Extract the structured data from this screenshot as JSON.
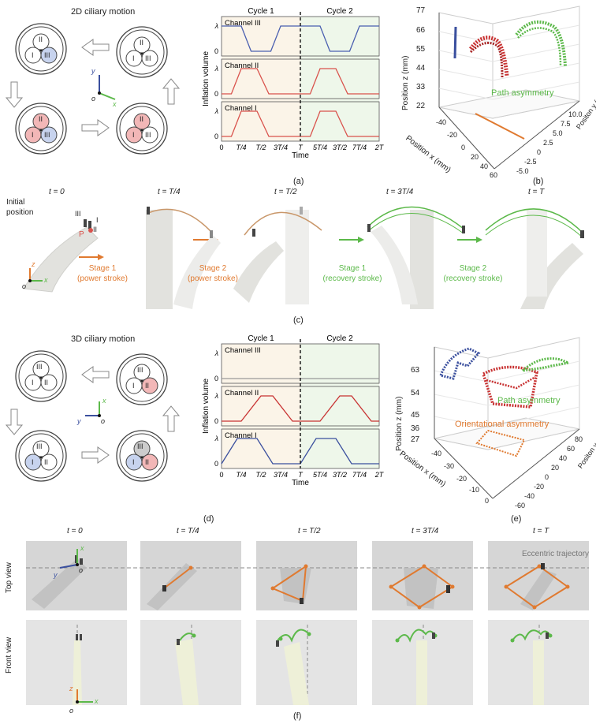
{
  "top": {
    "title": "2D ciliary motion",
    "roman": {
      "one": "I",
      "two": "II",
      "three": "III"
    },
    "axis": {
      "o": "o",
      "x": "x",
      "y": "y",
      "z": "z"
    },
    "caption_a": "(a)",
    "caption_b": "(b)"
  },
  "mid": {
    "title": "3D ciliary motion",
    "caption_d": "(d)",
    "caption_e": "(e)"
  },
  "chart_a": {
    "type": "line",
    "cycles": [
      "Cycle 1",
      "Cycle 2"
    ],
    "channels": [
      "Channel III",
      "Channel II",
      "Channel I"
    ],
    "ylabel": "Inflation volume",
    "xlabel": "Time",
    "yticks": [
      "λ",
      "0"
    ],
    "xticks": [
      "0",
      "T/4",
      "T/2",
      "3T/4",
      "T",
      "5T/4",
      "3T/2",
      "7T/4",
      "2T"
    ]
  },
  "chart_d": {
    "type": "line",
    "cycles": [
      "Cycle 1",
      "Cycle 2"
    ],
    "channels": [
      "Channel III",
      "Channel II",
      "Channel I"
    ],
    "ylabel": "Inflation volume",
    "xlabel": "Time",
    "yticks": [
      "λ",
      "0"
    ],
    "xticks": [
      "0",
      "T/4",
      "T/2",
      "3T/4",
      "T",
      "5T/4",
      "3T/2",
      "7T/4",
      "2T"
    ]
  },
  "chart_b": {
    "type": "scatter",
    "zlabel": "Position z (mm)",
    "xlabel": "Position x (mm)",
    "ylabel": "Positon y (mm)",
    "zticks": [
      "77",
      "66",
      "55",
      "44",
      "33",
      "22"
    ],
    "xticks": [
      "-40",
      "-20",
      "0",
      "20",
      "40",
      "60"
    ],
    "yticks": [
      "10.0",
      "7.5",
      "5.0",
      "2.5",
      "0",
      "-2.5",
      "-5.0"
    ],
    "annotation": "Path asymmetry"
  },
  "chart_e": {
    "type": "scatter",
    "zlabel": "Position z (mm)",
    "xlabel": "Position x (mm)",
    "ylabel": "Positon y (mm)",
    "zticks": [
      "63",
      "54",
      "45",
      "36",
      "27"
    ],
    "xticks": [
      "-40",
      "-30",
      "-20",
      "-10",
      "0"
    ],
    "yticks": [
      "80",
      "60",
      "40",
      "20",
      "0",
      "-20",
      "-40",
      "-60"
    ],
    "annotations": [
      "Path asymmetry",
      "Orientational asymmetry"
    ]
  },
  "panel_c": {
    "times": [
      "t = 0",
      "t = T/4",
      "t = T/2",
      "t = 3T/4",
      "t = T"
    ],
    "initial": "Initial position",
    "labels": {
      "iii": "III",
      "i": "I",
      "ii": "II",
      "p": "P"
    },
    "stages": [
      {
        "name": "Stage 1",
        "sub": "(power stroke)"
      },
      {
        "name": "Stage 2",
        "sub": "(power stroke)"
      },
      {
        "name": "Stage 1",
        "sub": "(recovery stroke)"
      },
      {
        "name": "Stage 2",
        "sub": "(recovery stroke)"
      }
    ],
    "caption": "(c)"
  },
  "panel_f": {
    "times": [
      "t = 0",
      "t = T/4",
      "t = T/2",
      "t = 3T/4",
      "t = T"
    ],
    "top_view": "Top view",
    "front_view": "Front view",
    "eccentric": "Eccentric trajectory",
    "caption": "(f)"
  },
  "colors": {
    "red": "#d9524c",
    "blue": "#3a4f9e",
    "green": "#5cb94a",
    "orange": "#e07a30",
    "pink": "#f2b7b7",
    "lightblue": "#c7d3ee"
  }
}
